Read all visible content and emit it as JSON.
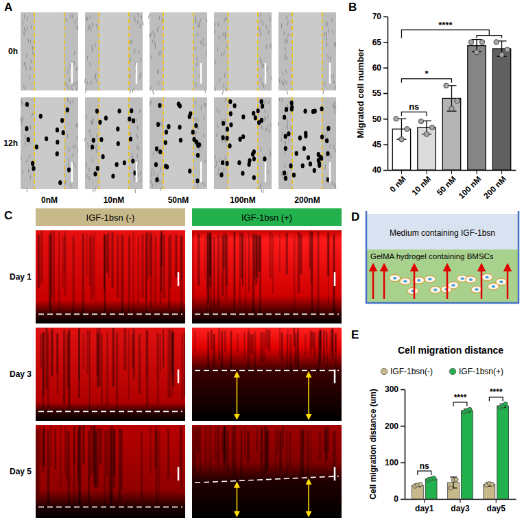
{
  "panel_labels": [
    "A",
    "B",
    "C",
    "D",
    "E"
  ],
  "panel_a": {
    "rows": [
      "0h",
      "12h"
    ],
    "columns": [
      "0nM",
      "10nM",
      "50nM",
      "100nM",
      "200nM"
    ]
  },
  "panel_c": {
    "groups": [
      "IGF-1bsn (-)",
      "IGF-1bsn (+)"
    ],
    "rows": [
      "Day 1",
      "Day 3",
      "Day 5"
    ]
  },
  "panel_d": {
    "medium": "Medium containing IGF-1bsn",
    "hydrogel": "GelMA hydrogel containing BMSCs"
  },
  "chart_data": [
    {
      "type": "bar",
      "y_label": "Migrated cell number",
      "categories": [
        "0 nM",
        "10 nM",
        "50 nM",
        "100 nM",
        "200 nM"
      ],
      "values": [
        48,
        48.3,
        54,
        64.3,
        63.7
      ],
      "errors": [
        2,
        1.3,
        2.5,
        1.2,
        1.5
      ],
      "points": [
        [
          50,
          46,
          48
        ],
        [
          49.5,
          47,
          48.3
        ],
        [
          56.5,
          52,
          53.5
        ],
        [
          65,
          63,
          65
        ],
        [
          65,
          62.5,
          63.5
        ]
      ],
      "colors": [
        "#ffffff",
        "#dcdcdc",
        "#b4b4b4",
        "#858585",
        "#606060"
      ],
      "marker": "circle",
      "ylim": [
        40,
        70
      ],
      "yticks": [
        40,
        45,
        50,
        55,
        60,
        65,
        70
      ],
      "annotations": [
        {
          "text": "ns",
          "from": 0,
          "to": 1
        },
        {
          "text": "*",
          "from": 0,
          "to": 2
        },
        {
          "text": "****",
          "from": 0,
          "to": [
            3,
            4
          ]
        }
      ]
    },
    {
      "type": "bar",
      "title": "Cell migration distance",
      "y_label": "Cell migration distance (um)",
      "categories": [
        "day1",
        "day3",
        "day5"
      ],
      "series": [
        {
          "name": "IGF-1bsn(-)",
          "color": "#c8b98a",
          "values": [
            37,
            45,
            40
          ],
          "errors": [
            4,
            15,
            5
          ],
          "points": [
            [
              35,
              38,
              40
            ],
            [
              30,
              52,
              53
            ],
            [
              38,
              42,
              40
            ]
          ]
        },
        {
          "name": "IGF-1bsn(+)",
          "color": "#22b14c",
          "values": [
            55,
            242,
            255
          ],
          "errors": [
            3,
            4,
            5
          ],
          "points": [
            [
              52,
              55,
              57
            ],
            [
              238,
              242,
              245
            ],
            [
              250,
              255,
              260
            ]
          ]
        }
      ],
      "marker": "circle",
      "legend": "top",
      "ylim": [
        0,
        300
      ],
      "yticks": [
        0,
        100,
        200,
        300
      ],
      "annotations": [
        {
          "text": "ns",
          "category": 0
        },
        {
          "text": "****",
          "category": 1
        },
        {
          "text": "****",
          "category": 2
        }
      ]
    }
  ]
}
